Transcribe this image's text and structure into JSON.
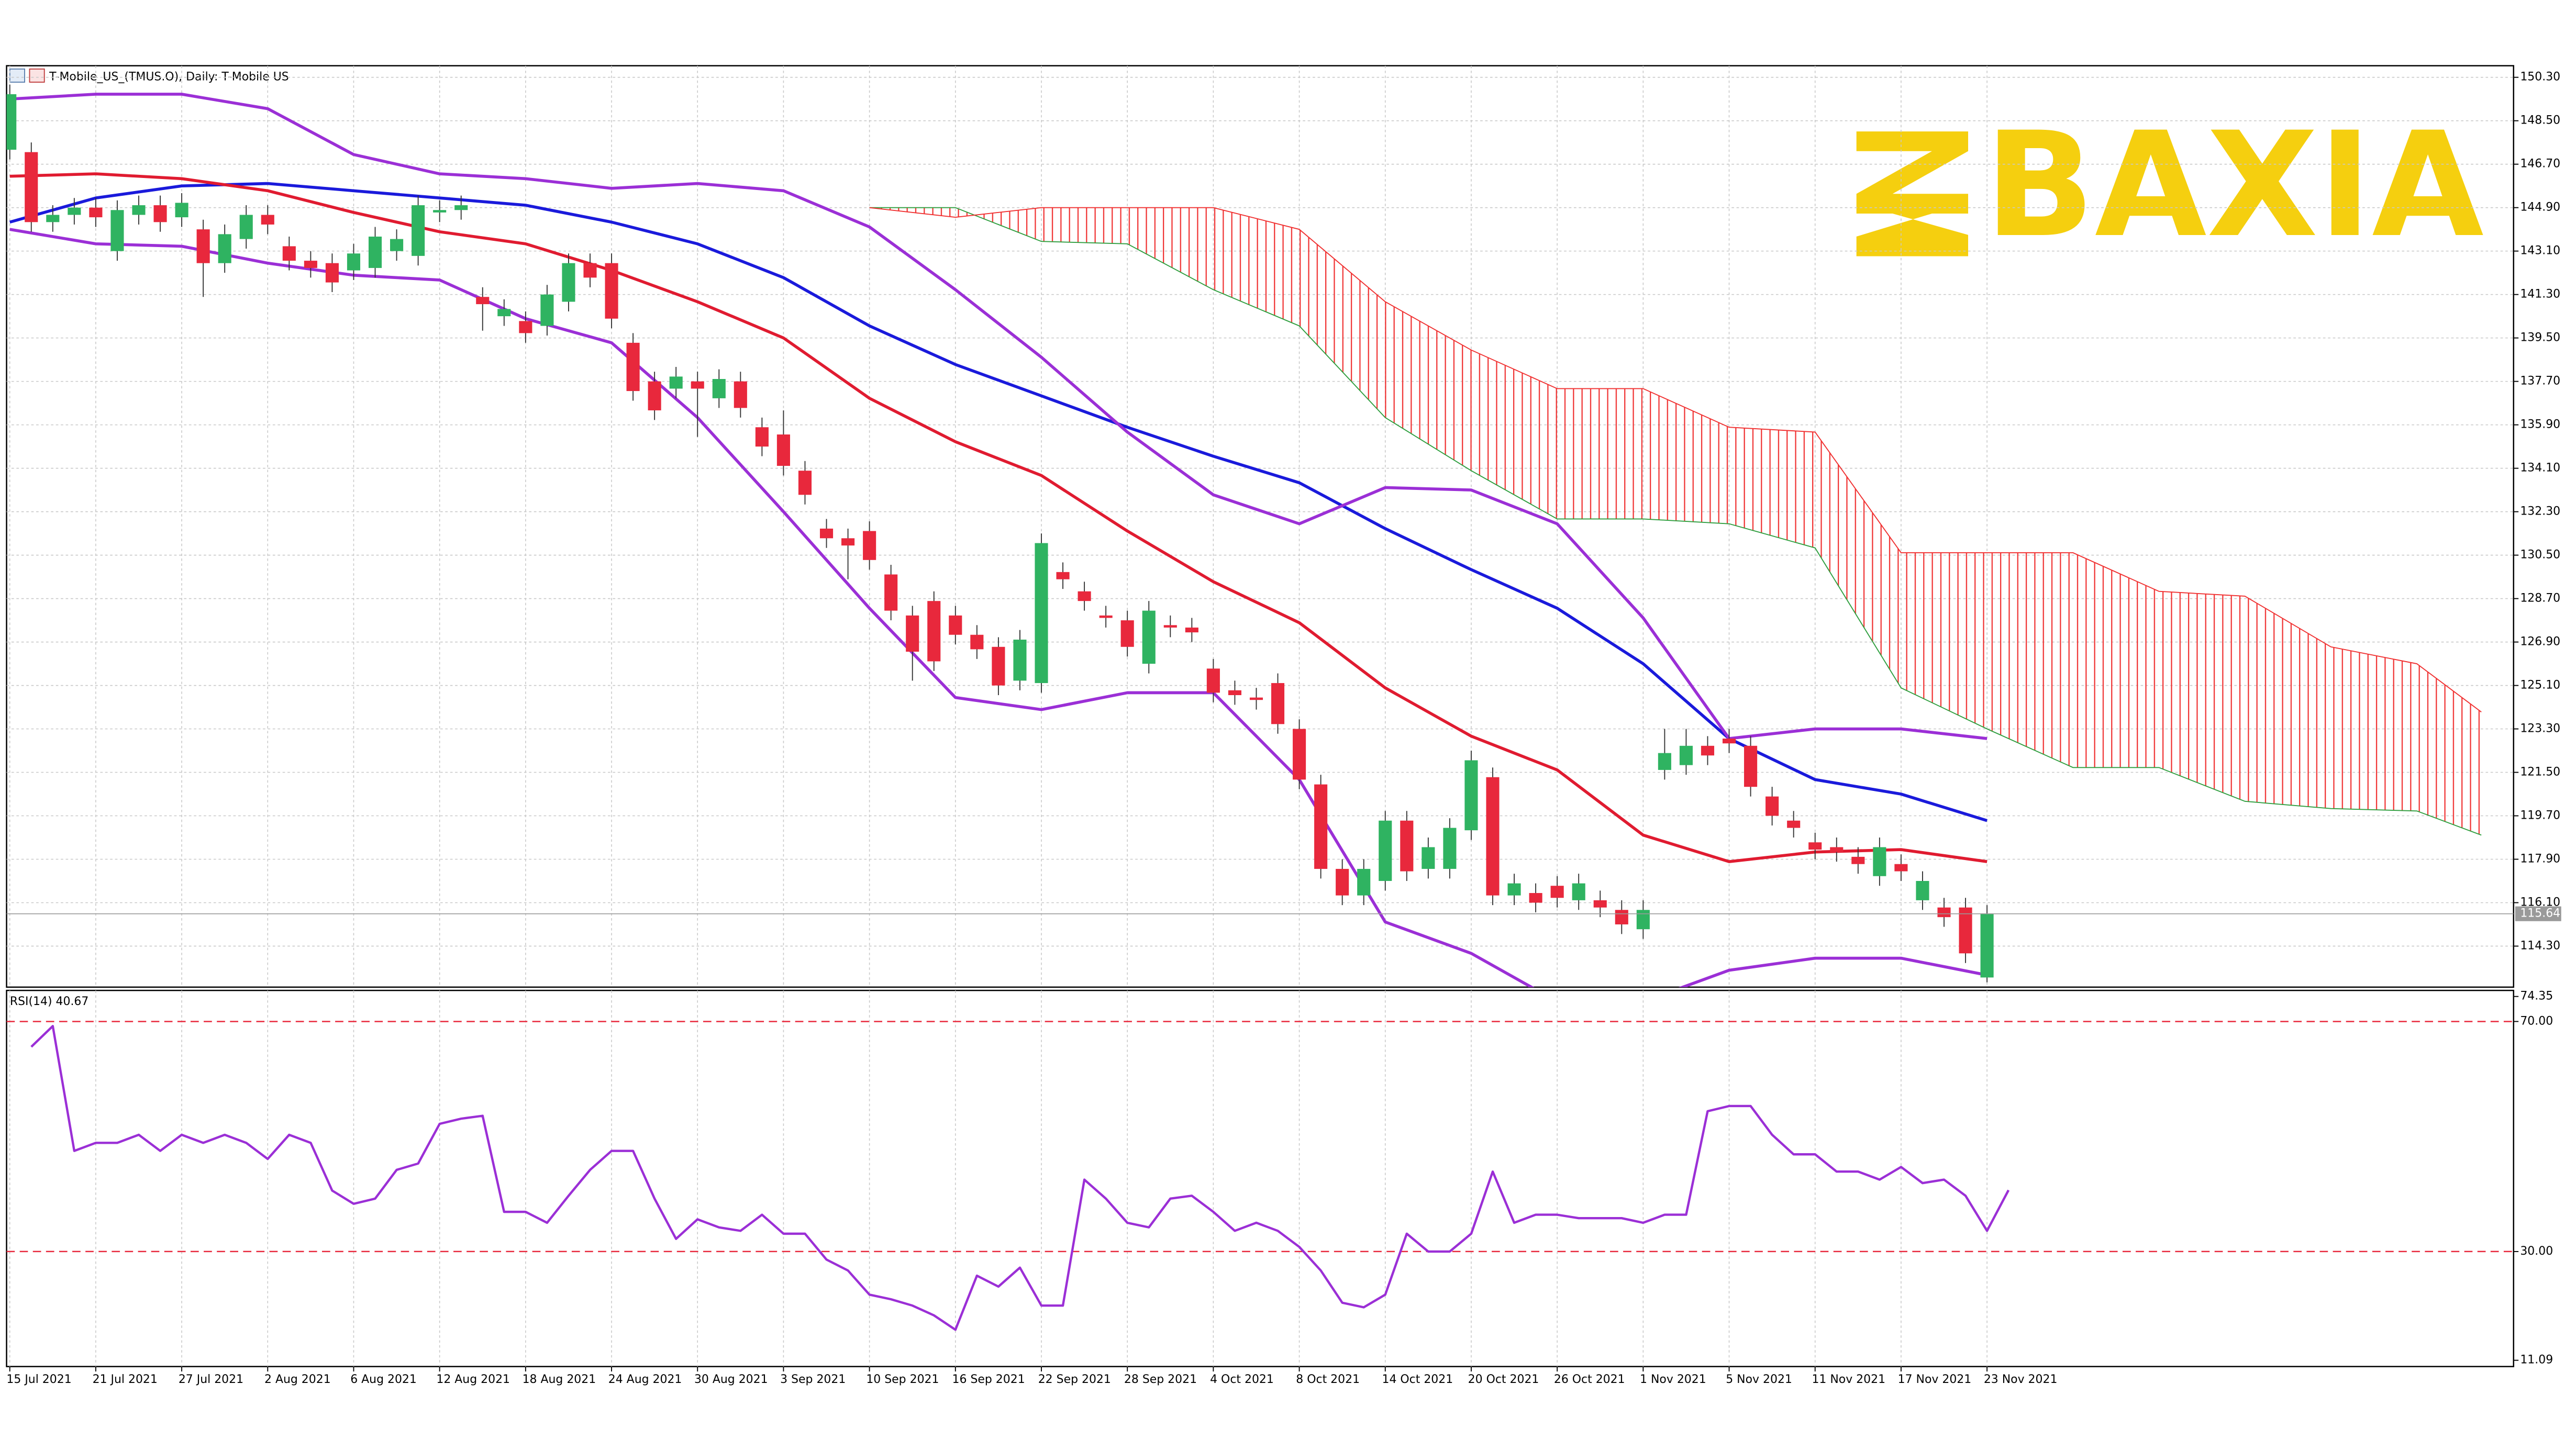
{
  "chart_data": [
    {
      "type": "candlestick",
      "title": "T-Mobile_US_(TMUS.O), Daily: T-Mobile US",
      "watermark": "BAXIA",
      "categories": [
        "15 Jul 2021",
        null,
        null,
        null,
        "21 Jul 2021",
        null,
        null,
        null,
        "27 Jul 2021",
        null,
        null,
        null,
        "2 Aug 2021",
        null,
        null,
        null,
        "6 Aug 2021",
        null,
        null,
        null,
        "12 Aug 2021",
        null,
        null,
        null,
        "18 Aug 2021",
        null,
        null,
        null,
        "24 Aug 2021",
        null,
        null,
        null,
        "30 Aug 2021",
        null,
        null,
        null,
        "3 Sep 2021",
        null,
        null,
        null,
        "10 Sep 2021",
        null,
        null,
        null,
        "16 Sep 2021",
        null,
        null,
        null,
        "22 Sep 2021",
        null,
        null,
        null,
        "28 Sep 2021",
        null,
        null,
        null,
        "4 Oct 2021",
        null,
        null,
        null,
        "8 Oct 2021",
        null,
        null,
        null,
        "14 Oct 2021",
        null,
        null,
        null,
        "20 Oct 2021",
        null,
        null,
        null,
        "26 Oct 2021",
        null,
        null,
        null,
        "1 Nov 2021",
        null,
        null,
        null,
        "5 Nov 2021",
        null,
        null,
        null,
        "11 Nov 2021",
        null,
        null,
        null,
        "17 Nov 2021",
        null,
        null,
        null,
        "23 Nov 2021"
      ],
      "open": [
        147.3,
        147.2,
        144.3,
        144.6,
        144.9,
        143.1,
        144.6,
        145.0,
        144.5,
        144.0,
        142.6,
        143.6,
        144.6,
        143.3,
        142.7,
        142.6,
        142.3,
        142.4,
        143.1,
        142.9,
        144.7,
        144.8,
        141.2,
        140.4,
        140.2,
        140.0,
        141.0,
        142.6,
        142.6,
        139.3,
        137.7,
        137.4,
        137.7,
        137.0,
        137.7,
        135.8,
        135.5,
        134.0,
        131.6,
        131.2,
        131.5,
        129.7,
        128.0,
        128.6,
        128.0,
        127.2,
        126.7,
        125.3,
        125.2,
        129.8,
        129.0,
        128.0,
        127.8,
        126.0,
        127.6,
        127.5,
        125.8,
        124.9,
        124.6,
        125.2,
        123.3,
        121.0,
        117.5,
        116.4,
        117.0,
        119.5,
        117.5,
        117.5,
        119.1,
        121.3,
        116.4,
        116.5,
        116.8,
        116.2,
        116.2,
        115.8,
        115.0,
        121.6,
        121.8,
        122.6,
        122.9,
        122.6,
        120.5,
        119.5,
        118.6,
        118.4,
        118.0,
        117.2,
        117.7,
        116.2,
        115.9,
        115.9,
        113.0
      ],
      "high": [
        150.0,
        147.6,
        145.0,
        145.3,
        145.3,
        145.2,
        145.4,
        145.4,
        145.5,
        144.4,
        144.2,
        145.0,
        145.0,
        143.7,
        143.1,
        143.0,
        143.4,
        144.1,
        144.0,
        145.4,
        145.2,
        145.4,
        141.6,
        141.1,
        140.6,
        141.7,
        143.0,
        143.0,
        143.0,
        139.7,
        138.1,
        138.3,
        138.1,
        138.2,
        138.1,
        136.2,
        136.5,
        134.4,
        132.0,
        131.6,
        131.9,
        130.1,
        128.4,
        129.0,
        128.4,
        127.6,
        127.1,
        127.4,
        131.4,
        130.2,
        129.4,
        128.4,
        128.2,
        128.6,
        128.0,
        127.9,
        126.2,
        125.3,
        125.0,
        125.6,
        123.7,
        121.4,
        117.9,
        117.9,
        119.9,
        119.9,
        118.8,
        119.6,
        122.4,
        121.7,
        117.3,
        116.9,
        117.2,
        117.3,
        116.6,
        116.2,
        116.2,
        123.3,
        123.3,
        123.0,
        123.3,
        123.0,
        120.9,
        119.9,
        119.0,
        118.8,
        118.4,
        118.8,
        118.1,
        117.4,
        116.3,
        116.3,
        116.0
      ],
      "low": [
        146.9,
        143.9,
        143.9,
        144.2,
        144.1,
        142.7,
        144.2,
        143.9,
        144.1,
        141.2,
        142.2,
        143.2,
        143.8,
        142.3,
        142.0,
        141.4,
        141.9,
        142.0,
        142.7,
        142.5,
        144.3,
        144.4,
        139.8,
        140.0,
        139.3,
        139.6,
        140.6,
        141.6,
        139.9,
        136.9,
        136.1,
        137.0,
        135.4,
        136.6,
        136.2,
        134.6,
        133.8,
        132.6,
        130.8,
        129.5,
        129.9,
        127.8,
        125.3,
        125.7,
        126.8,
        126.2,
        124.7,
        124.9,
        124.8,
        129.1,
        128.2,
        127.5,
        126.3,
        125.6,
        127.1,
        126.9,
        124.4,
        124.3,
        124.1,
        123.1,
        120.8,
        117.1,
        116.0,
        116.0,
        116.6,
        117.0,
        117.1,
        117.1,
        118.7,
        116.0,
        116.0,
        115.7,
        115.9,
        115.8,
        115.5,
        114.8,
        114.6,
        121.2,
        121.4,
        121.8,
        122.3,
        120.5,
        119.3,
        118.8,
        117.9,
        117.8,
        117.3,
        116.8,
        117.0,
        115.8,
        115.1,
        113.6,
        112.8
      ],
      "close": [
        149.6,
        144.3,
        144.6,
        144.9,
        144.5,
        144.8,
        145.0,
        144.3,
        145.1,
        142.6,
        143.8,
        144.6,
        144.2,
        142.7,
        142.4,
        141.8,
        143.0,
        143.7,
        143.6,
        145.0,
        144.8,
        145.0,
        140.9,
        140.7,
        139.7,
        141.3,
        142.6,
        142.0,
        140.3,
        137.3,
        136.5,
        137.9,
        137.4,
        137.8,
        136.6,
        135.0,
        134.2,
        133.0,
        131.2,
        130.9,
        130.3,
        128.2,
        126.5,
        126.1,
        127.2,
        126.6,
        125.1,
        127.0,
        131.0,
        129.5,
        128.6,
        127.9,
        126.7,
        128.2,
        127.5,
        127.3,
        124.8,
        124.7,
        124.5,
        123.5,
        121.2,
        117.5,
        116.4,
        117.5,
        119.5,
        117.4,
        118.4,
        119.2,
        122.0,
        116.4,
        116.9,
        116.1,
        116.3,
        116.9,
        115.9,
        115.2,
        115.8,
        122.3,
        122.6,
        122.2,
        122.7,
        120.9,
        119.7,
        119.2,
        118.3,
        118.2,
        117.7,
        118.4,
        117.4,
        117.0,
        115.5,
        114.0,
        115.64
      ],
      "up_color": "#2fb361",
      "down_color": "#e8283c",
      "last_price": 115.64,
      "overlays": [
        {
          "color": "#1a1adb",
          "x": [
            0,
            4,
            8,
            12,
            16,
            20,
            24,
            28,
            32,
            36,
            40,
            44,
            48,
            52,
            56,
            60,
            64,
            68,
            72,
            76,
            80,
            84,
            88,
            92
          ],
          "values": [
            144.3,
            145.3,
            145.8,
            145.9,
            145.6,
            145.3,
            145.0,
            144.3,
            143.4,
            142.0,
            140.0,
            138.4,
            137.1,
            135.8,
            134.6,
            133.5,
            131.6,
            129.9,
            128.3,
            126.0,
            122.9,
            121.2,
            120.6,
            119.5
          ]
        },
        {
          "color": "#e01b30",
          "x": [
            0,
            4,
            8,
            12,
            16,
            20,
            24,
            28,
            32,
            36,
            40,
            44,
            48,
            52,
            56,
            60,
            64,
            68,
            72,
            76,
            80,
            84,
            88,
            92
          ],
          "values": [
            146.2,
            146.3,
            146.1,
            145.6,
            144.7,
            143.9,
            143.4,
            142.3,
            141.0,
            139.5,
            137.0,
            135.2,
            133.8,
            131.5,
            129.4,
            127.7,
            125.0,
            123.0,
            121.6,
            118.9,
            117.8,
            118.2,
            118.3,
            117.8
          ]
        },
        {
          "color": "#9b2fd6",
          "x": [
            0,
            4,
            8,
            12,
            16,
            20,
            24,
            28,
            32,
            36,
            40,
            44,
            48,
            52,
            56,
            60,
            64,
            68,
            72,
            76,
            80,
            84,
            88,
            92
          ],
          "values": [
            149.4,
            149.6,
            149.6,
            149.0,
            147.1,
            146.3,
            146.1,
            145.7,
            145.9,
            145.6,
            144.1,
            141.5,
            138.7,
            135.6,
            133.0,
            131.8,
            133.3,
            133.2,
            131.8,
            127.9,
            122.9,
            123.3,
            123.3,
            122.9
          ]
        },
        {
          "color": "#9b2fd6",
          "x": [
            0,
            4,
            8,
            12,
            16,
            20,
            24,
            28,
            32,
            36,
            40,
            44,
            48,
            52,
            56,
            60,
            64,
            68,
            72,
            76,
            80,
            84,
            88,
            92
          ],
          "values": [
            144.0,
            143.4,
            143.3,
            142.6,
            142.1,
            141.9,
            140.3,
            139.3,
            136.2,
            132.3,
            128.3,
            124.6,
            124.1,
            124.8,
            124.8,
            121.2,
            115.3,
            114.0,
            112.0,
            112.0,
            113.3,
            113.8,
            113.8,
            113.1
          ]
        }
      ],
      "cloud": {
        "x": [
          40,
          44,
          48,
          52,
          56,
          60,
          64,
          68,
          72,
          76,
          80,
          84,
          88,
          92,
          96,
          100,
          104,
          108,
          112,
          115
        ],
        "span_a": [
          144.9,
          144.9,
          143.5,
          143.4,
          141.5,
          140.0,
          136.2,
          134.0,
          132.0,
          132.0,
          131.8,
          130.8,
          125.0,
          123.3,
          121.7,
          121.7,
          120.3,
          120.0,
          119.9,
          118.9
        ],
        "span_b": [
          144.9,
          144.5,
          144.9,
          144.9,
          144.9,
          144.0,
          141.0,
          139.0,
          137.4,
          137.4,
          135.8,
          135.6,
          130.6,
          130.6,
          130.6,
          129.0,
          128.8,
          126.7,
          126.0,
          124.0
        ],
        "color_a": "#2e9e3e",
        "color_b": "#f03030"
      },
      "xlim": [
        -0.15,
        116.5
      ],
      "ylim": [
        112.6,
        150.78
      ],
      "yticks": [
        {
          "value": 150.3,
          "label": "150.30"
        },
        {
          "value": 148.5,
          "label": "148.50"
        },
        {
          "value": 146.7,
          "label": "146.70"
        },
        {
          "value": 144.9,
          "label": "144.90"
        },
        {
          "value": 143.1,
          "label": "143.10"
        },
        {
          "value": 141.3,
          "label": "141.30"
        },
        {
          "value": 139.5,
          "label": "139.50"
        },
        {
          "value": 137.7,
          "label": "137.70"
        },
        {
          "value": 135.9,
          "label": "135.90"
        },
        {
          "value": 134.1,
          "label": "134.10"
        },
        {
          "value": 132.3,
          "label": "132.30"
        },
        {
          "value": 130.5,
          "label": "130.50"
        },
        {
          "value": 128.7,
          "label": "128.70"
        },
        {
          "value": 126.9,
          "label": "126.90"
        },
        {
          "value": 125.1,
          "label": "125.10"
        },
        {
          "value": 123.3,
          "label": "123.30"
        },
        {
          "value": 121.5,
          "label": "121.50"
        },
        {
          "value": 119.7,
          "label": "119.70"
        },
        {
          "value": 117.9,
          "label": "117.90"
        },
        {
          "value": 116.1,
          "label": "116.10"
        },
        {
          "value": 114.3,
          "label": "114.30"
        }
      ],
      "grid": true
    },
    {
      "type": "line",
      "title": "RSI(14) 40.67",
      "values": [
        65.6,
        69.2,
        47.5,
        48.9,
        48.9,
        50.3,
        47.5,
        50.3,
        48.9,
        50.3,
        48.9,
        46.1,
        50.3,
        48.9,
        40.6,
        38.3,
        39.2,
        44.2,
        45.3,
        52.2,
        53.1,
        53.6,
        36.9,
        36.9,
        35.0,
        39.7,
        44.2,
        47.5,
        47.5,
        39.2,
        32.2,
        35.6,
        34.2,
        33.6,
        36.4,
        33.1,
        33.1,
        28.6,
        26.7,
        22.5,
        21.7,
        20.6,
        18.9,
        16.4,
        25.8,
        23.9,
        27.2,
        20.6,
        20.6,
        42.5,
        39.2,
        35.0,
        34.2,
        39.2,
        39.7,
        36.9,
        33.6,
        35.0,
        33.6,
        30.8,
        26.7,
        21.1,
        20.3,
        22.5,
        33.1,
        30.0,
        30.0,
        33.1,
        43.9,
        35.0,
        36.4,
        36.4,
        35.8,
        35.8,
        35.8,
        35.0,
        36.4,
        36.4,
        54.4,
        55.3,
        55.3,
        50.3,
        46.9,
        46.9,
        43.9,
        43.9,
        42.5,
        44.7,
        41.9,
        42.5,
        39.7,
        33.6,
        40.67
      ],
      "color": "#9b2fd6",
      "levels": [
        70,
        30
      ],
      "level_color": "#e8283c",
      "xlim": [
        -1.15,
        115.5
      ],
      "ylim": [
        10,
        75.4
      ],
      "yticks": [
        74.35,
        {
          "value": 70,
          "label": "70.00"
        },
        {
          "value": 30,
          "label": "30.00"
        },
        11.09
      ],
      "grid": true
    }
  ]
}
